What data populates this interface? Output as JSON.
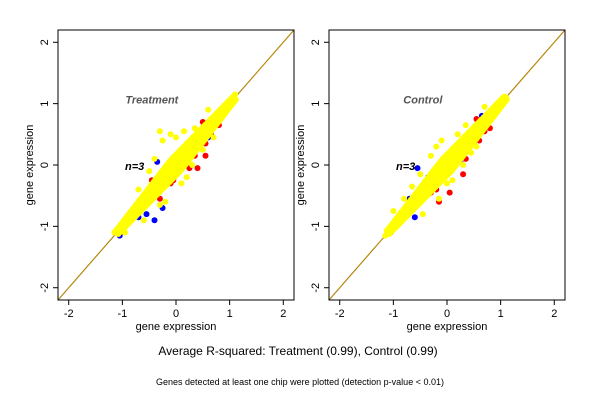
{
  "figure": {
    "summary": "Average R-squared: Treatment (0.99), Control (0.99)",
    "footnote": "Genes detected at least one chip were plotted (detection p-value < 0.01)"
  },
  "colors": {
    "points_main": "#ffff00",
    "points_red": "#ff0000",
    "points_blue": "#0000ff",
    "identity_line": "#b8860b",
    "panel_title": "#555555"
  },
  "chart_data": [
    {
      "type": "scatter",
      "title": "Treatment",
      "annotation": "n=3",
      "xlabel": "gene expression",
      "ylabel": "gene expression",
      "xlim": [
        -2.2,
        2.2
      ],
      "ylim": [
        -2.2,
        2.2
      ],
      "xticks": [
        -2,
        -1,
        0,
        1,
        2
      ],
      "yticks": [
        -2,
        -1,
        0,
        1,
        2
      ],
      "reference_line": "y = x",
      "series": [
        {
          "color": "yellow",
          "points": [
            [
              -1.15,
              -1.1
            ],
            [
              -1.05,
              -1.05
            ],
            [
              -0.95,
              -0.9
            ],
            [
              -0.9,
              -0.95
            ],
            [
              -0.85,
              -0.8
            ],
            [
              -0.8,
              -0.75
            ],
            [
              -0.75,
              -0.7
            ],
            [
              -0.7,
              -0.75
            ],
            [
              -0.65,
              -0.6
            ],
            [
              -0.6,
              -0.55
            ],
            [
              -0.55,
              -0.6
            ],
            [
              -0.5,
              -0.45
            ],
            [
              -0.45,
              -0.4
            ],
            [
              -0.4,
              -0.45
            ],
            [
              -0.35,
              -0.3
            ],
            [
              -0.3,
              -0.25
            ],
            [
              -0.25,
              -0.3
            ],
            [
              -0.2,
              -0.15
            ],
            [
              -0.15,
              -0.1
            ],
            [
              -0.1,
              -0.15
            ],
            [
              -0.05,
              0.0
            ],
            [
              0.0,
              0.05
            ],
            [
              0.05,
              0.0
            ],
            [
              0.1,
              0.15
            ],
            [
              0.15,
              0.1
            ],
            [
              0.2,
              0.25
            ],
            [
              0.25,
              0.2
            ],
            [
              0.3,
              0.35
            ],
            [
              0.35,
              0.4
            ],
            [
              0.4,
              0.35
            ],
            [
              0.45,
              0.5
            ],
            [
              0.5,
              0.45
            ],
            [
              0.55,
              0.6
            ],
            [
              0.6,
              0.55
            ],
            [
              0.65,
              0.7
            ],
            [
              0.7,
              0.75
            ],
            [
              0.75,
              0.7
            ],
            [
              0.8,
              0.85
            ],
            [
              0.85,
              0.8
            ],
            [
              0.9,
              0.95
            ],
            [
              0.95,
              0.9
            ],
            [
              1.0,
              1.05
            ],
            [
              1.05,
              1.0
            ],
            [
              1.1,
              1.15
            ],
            [
              -0.3,
              0.55
            ],
            [
              -0.25,
              0.4
            ],
            [
              -0.1,
              0.5
            ],
            [
              0.0,
              0.45
            ],
            [
              -0.4,
              0.1
            ],
            [
              -0.5,
              -0.1
            ],
            [
              0.1,
              -0.3
            ],
            [
              0.2,
              -0.2
            ],
            [
              0.3,
              0.0
            ],
            [
              0.35,
              0.6
            ],
            [
              -0.6,
              -0.9
            ],
            [
              -0.2,
              -0.6
            ],
            [
              -0.7,
              -0.4
            ],
            [
              0.6,
              0.9
            ],
            [
              0.5,
              0.25
            ],
            [
              0.7,
              0.45
            ],
            [
              -0.95,
              -1.1
            ],
            [
              -0.3,
              -0.65
            ],
            [
              0.15,
              0.55
            ]
          ]
        },
        {
          "color": "red",
          "points": [
            [
              -0.5,
              -0.6
            ],
            [
              -0.4,
              -0.3
            ],
            [
              -0.45,
              -0.25
            ],
            [
              -0.1,
              -0.3
            ],
            [
              -0.05,
              -0.25
            ],
            [
              0.3,
              0.2
            ],
            [
              0.35,
              0.15
            ],
            [
              0.55,
              0.35
            ],
            [
              0.45,
              0.55
            ],
            [
              0.65,
              0.5
            ],
            [
              0.8,
              0.65
            ],
            [
              0.5,
              0.7
            ],
            [
              0.25,
              -0.05
            ],
            [
              -0.3,
              -0.55
            ],
            [
              0.55,
              0.15
            ],
            [
              0.4,
              -0.05
            ]
          ]
        },
        {
          "color": "blue",
          "points": [
            [
              -1.05,
              -1.15
            ],
            [
              -0.7,
              -0.85
            ],
            [
              -0.55,
              -0.8
            ],
            [
              -0.4,
              -0.9
            ],
            [
              -0.25,
              -0.7
            ],
            [
              0.35,
              0.3
            ],
            [
              0.6,
              0.45
            ],
            [
              -0.35,
              0.05
            ],
            [
              -0.95,
              -0.95
            ]
          ]
        }
      ]
    },
    {
      "type": "scatter",
      "title": "Control",
      "annotation": "n=3",
      "xlabel": "gene expression",
      "ylabel": "gene expression",
      "xlim": [
        -2.2,
        2.2
      ],
      "ylim": [
        -2.2,
        2.2
      ],
      "xticks": [
        -2,
        -1,
        0,
        1,
        2
      ],
      "yticks": [
        -2,
        -1,
        0,
        1,
        2
      ],
      "reference_line": "y = x",
      "series": [
        {
          "color": "yellow",
          "points": [
            [
              -1.15,
              -1.15
            ],
            [
              -1.05,
              -1.0
            ],
            [
              -0.95,
              -0.95
            ],
            [
              -0.9,
              -0.85
            ],
            [
              -0.85,
              -0.9
            ],
            [
              -0.8,
              -0.75
            ],
            [
              -0.75,
              -0.8
            ],
            [
              -0.7,
              -0.65
            ],
            [
              -0.65,
              -0.7
            ],
            [
              -0.6,
              -0.55
            ],
            [
              -0.55,
              -0.5
            ],
            [
              -0.5,
              -0.55
            ],
            [
              -0.45,
              -0.4
            ],
            [
              -0.4,
              -0.35
            ],
            [
              -0.35,
              -0.4
            ],
            [
              -0.3,
              -0.25
            ],
            [
              -0.25,
              -0.2
            ],
            [
              -0.2,
              -0.25
            ],
            [
              -0.15,
              -0.1
            ],
            [
              -0.1,
              -0.05
            ],
            [
              -0.05,
              -0.1
            ],
            [
              0.0,
              0.05
            ],
            [
              0.05,
              0.1
            ],
            [
              0.1,
              0.05
            ],
            [
              0.15,
              0.2
            ],
            [
              0.2,
              0.15
            ],
            [
              0.25,
              0.3
            ],
            [
              0.3,
              0.25
            ],
            [
              0.35,
              0.4
            ],
            [
              0.4,
              0.45
            ],
            [
              0.45,
              0.4
            ],
            [
              0.5,
              0.55
            ],
            [
              0.55,
              0.5
            ],
            [
              0.6,
              0.65
            ],
            [
              0.65,
              0.6
            ],
            [
              0.7,
              0.75
            ],
            [
              0.75,
              0.7
            ],
            [
              0.8,
              0.85
            ],
            [
              0.85,
              0.8
            ],
            [
              0.9,
              0.95
            ],
            [
              0.95,
              0.9
            ],
            [
              1.0,
              1.05
            ],
            [
              1.05,
              1.0
            ],
            [
              1.1,
              1.1
            ],
            [
              -0.2,
              0.3
            ],
            [
              -0.1,
              0.4
            ],
            [
              -0.3,
              0.15
            ],
            [
              -0.5,
              -0.15
            ],
            [
              0.0,
              -0.3
            ],
            [
              0.1,
              -0.25
            ],
            [
              0.35,
              0.65
            ],
            [
              -0.45,
              -0.8
            ],
            [
              -0.8,
              -0.55
            ],
            [
              0.2,
              0.5
            ],
            [
              -0.65,
              -0.35
            ],
            [
              0.3,
              0.0
            ],
            [
              0.55,
              0.3
            ],
            [
              -0.15,
              -0.55
            ],
            [
              0.7,
              0.95
            ],
            [
              -1.0,
              -0.75
            ],
            [
              0.45,
              0.2
            ]
          ]
        },
        {
          "color": "red",
          "points": [
            [
              -0.45,
              -0.55
            ],
            [
              -0.3,
              -0.45
            ],
            [
              -0.2,
              -0.4
            ],
            [
              0.15,
              0.0
            ],
            [
              0.35,
              0.1
            ],
            [
              0.5,
              0.35
            ],
            [
              0.6,
              0.4
            ],
            [
              0.7,
              0.55
            ],
            [
              0.55,
              0.75
            ],
            [
              0.8,
              0.6
            ],
            [
              -0.15,
              -0.6
            ],
            [
              0.05,
              -0.45
            ],
            [
              0.3,
              -0.15
            ],
            [
              0.45,
              0.55
            ]
          ]
        },
        {
          "color": "blue",
          "points": [
            [
              -1.05,
              -1.1
            ],
            [
              -0.95,
              -1.0
            ],
            [
              -0.6,
              -0.85
            ],
            [
              -0.7,
              -0.55
            ],
            [
              -0.55,
              -0.05
            ],
            [
              0.4,
              0.5
            ],
            [
              0.65,
              0.8
            ],
            [
              -0.35,
              -0.2
            ],
            [
              0.25,
              0.05
            ]
          ]
        }
      ]
    }
  ]
}
